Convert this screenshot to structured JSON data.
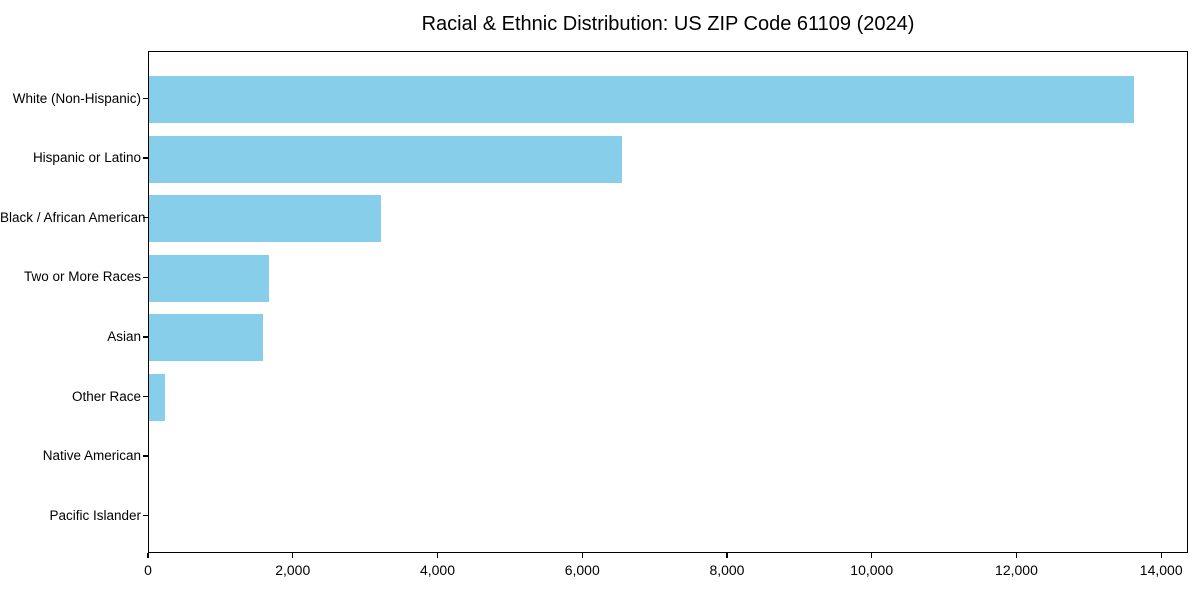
{
  "page": {
    "background_color": "#ffffff",
    "text_color": "#000000"
  },
  "chart_data": {
    "type": "bar",
    "orientation": "horizontal",
    "title": "Racial & Ethnic Distribution: US ZIP Code 61109 (2024)",
    "categories": [
      "White (Non-Hispanic)",
      "Hispanic or Latino",
      "Black / African American",
      "Two or More Races",
      "Asian",
      "Other Race",
      "Native American",
      "Pacific Islander"
    ],
    "values": [
      13630,
      6550,
      3210,
      1665,
      1585,
      215,
      0,
      0
    ],
    "xlabel": "",
    "ylabel": "",
    "xlim": [
      0,
      14370
    ],
    "x_ticks": [
      0,
      2000,
      4000,
      6000,
      8000,
      10000,
      12000,
      14000
    ],
    "x_tick_labels": [
      "0",
      "2,000",
      "4,000",
      "6,000",
      "8,000",
      "10,000",
      "12,000",
      "14,000"
    ],
    "bar_color": "#87CEEB",
    "axis_color": "#000000",
    "grid": false,
    "legend": null
  }
}
